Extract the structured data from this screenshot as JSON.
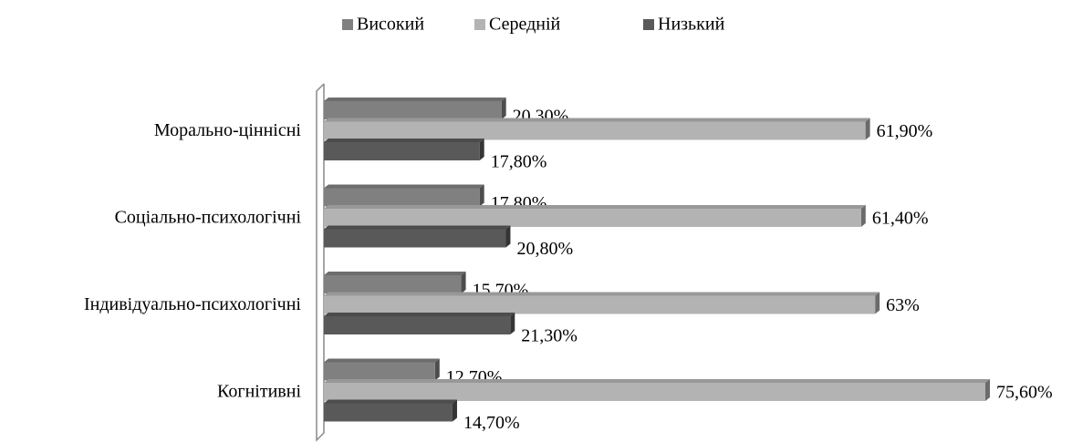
{
  "chart_data": {
    "type": "bar",
    "orientation": "horizontal",
    "categories": [
      "Морально-ціннісні",
      "Соціально-психологічні",
      "Індивідуально-психологічні",
      "Когнітивні"
    ],
    "series": [
      {
        "name": "Високий",
        "color": "#808080",
        "values": [
          20.3,
          17.8,
          15.7,
          12.7
        ],
        "value_labels": [
          "20,30%",
          "17,80%",
          "15,70%",
          "12,70%"
        ]
      },
      {
        "name": "Середній",
        "color": "#b3b3b3",
        "values": [
          61.9,
          61.4,
          63,
          75.6
        ],
        "value_labels": [
          "61,90%",
          "61,40%",
          "63%",
          "75,60%"
        ]
      },
      {
        "name": "Низький",
        "color": "#595959",
        "values": [
          17.8,
          20.8,
          21.3,
          14.7
        ],
        "value_labels": [
          "17,80%",
          "20,80%",
          "21,30%",
          "14,70%"
        ]
      }
    ],
    "legend": "top"
  }
}
